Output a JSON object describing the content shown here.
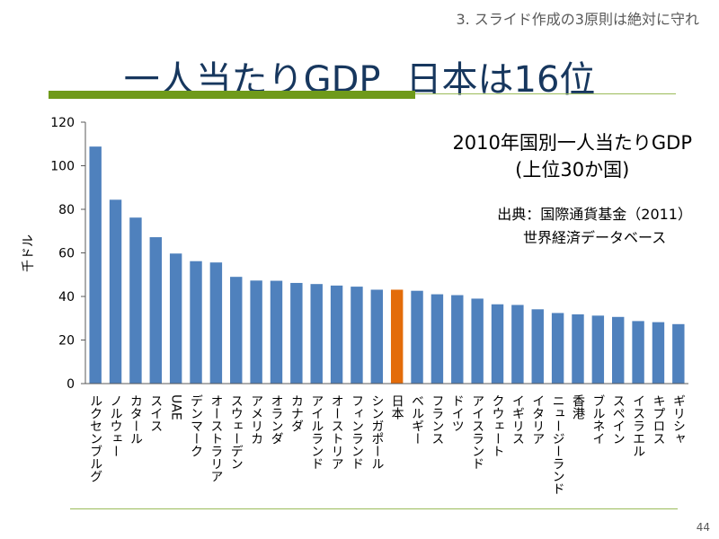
{
  "section_label": "3. スライド作成の3原則は絶対に守れ",
  "slide_title_left": "一人当たりGDP",
  "slide_title_right": "日本は16位",
  "page_number": "44",
  "colors": {
    "bar": "#4f81bd",
    "highlight": "#e36c0a",
    "title": "#17375e",
    "rule": "#6f9a1a"
  },
  "caption": {
    "line1": "2010年国別一人当たりGDP",
    "line2": "(上位30か国)",
    "source_line1": "出典：国際通貨基金（2011）",
    "source_line2": "世界経済データベース"
  },
  "chart_data": {
    "type": "bar",
    "title": "2010年国別一人当たりGDP (上位30か国)",
    "ylabel": "千ドル",
    "xlabel": "",
    "ylim": [
      0,
      120
    ],
    "yticks": [
      0,
      20,
      40,
      60,
      80,
      100,
      120
    ],
    "highlight": "日本",
    "categories": [
      "ルクセンブルグ",
      "ノルウェー",
      "カタール",
      "スイス",
      "UAE",
      "デンマーク",
      "オーストラリア",
      "スウェーデン",
      "アメリカ",
      "オランダ",
      "カナダ",
      "アイルランド",
      "オーストリア",
      "フィンランド",
      "シンガポール",
      "日本",
      "ベルギー",
      "フランス",
      "ドイツ",
      "アイスランド",
      "クウェート",
      "イギリス",
      "イタリア",
      "ニュージーランド",
      "香港",
      "ブルネイ",
      "スペイン",
      "イスラエル",
      "キプロス",
      "ギリシャ"
    ],
    "values": [
      108.8,
      84.4,
      76.2,
      67.2,
      59.7,
      56.2,
      55.6,
      49.0,
      47.3,
      47.2,
      46.2,
      45.7,
      45.0,
      44.5,
      43.1,
      43.1,
      42.6,
      41.0,
      40.6,
      39.0,
      36.4,
      36.1,
      34.1,
      32.4,
      31.8,
      31.2,
      30.6,
      28.7,
      28.2,
      27.3
    ]
  }
}
